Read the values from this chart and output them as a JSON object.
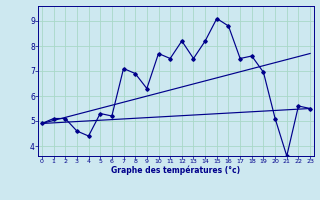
{
  "xlabel": "Graphe des températures (°c)",
  "bg_color": "#cde8f0",
  "line_color": "#00008b",
  "x_ticks": [
    0,
    1,
    2,
    3,
    4,
    5,
    6,
    7,
    8,
    9,
    10,
    11,
    12,
    13,
    14,
    15,
    16,
    17,
    18,
    19,
    20,
    21,
    22,
    23
  ],
  "y_ticks": [
    4,
    5,
    6,
    7,
    8,
    9
  ],
  "ylim": [
    3.6,
    9.6
  ],
  "xlim": [
    -0.3,
    23.3
  ],
  "curve1_x": [
    0,
    1,
    2,
    3,
    4,
    5,
    6,
    7,
    8,
    9,
    10,
    11,
    12,
    13,
    14,
    15,
    16,
    17,
    18,
    19,
    20,
    21,
    22,
    23
  ],
  "curve1_y": [
    4.9,
    5.1,
    5.1,
    4.6,
    4.4,
    5.3,
    5.2,
    7.1,
    6.9,
    6.3,
    7.7,
    7.5,
    8.2,
    7.5,
    8.2,
    9.1,
    8.8,
    7.5,
    7.6,
    6.95,
    5.1,
    3.6,
    5.6,
    5.5
  ],
  "curve2_x": [
    0,
    23
  ],
  "curve2_y": [
    4.9,
    7.7
  ],
  "curve3_x": [
    0,
    23
  ],
  "curve3_y": [
    4.9,
    5.5
  ],
  "grid_color": "#a8d8c8",
  "marker": "D",
  "marker_size": 1.8,
  "linewidth": 0.85,
  "tick_fontsize_x": 4.5,
  "tick_fontsize_y": 5.5
}
